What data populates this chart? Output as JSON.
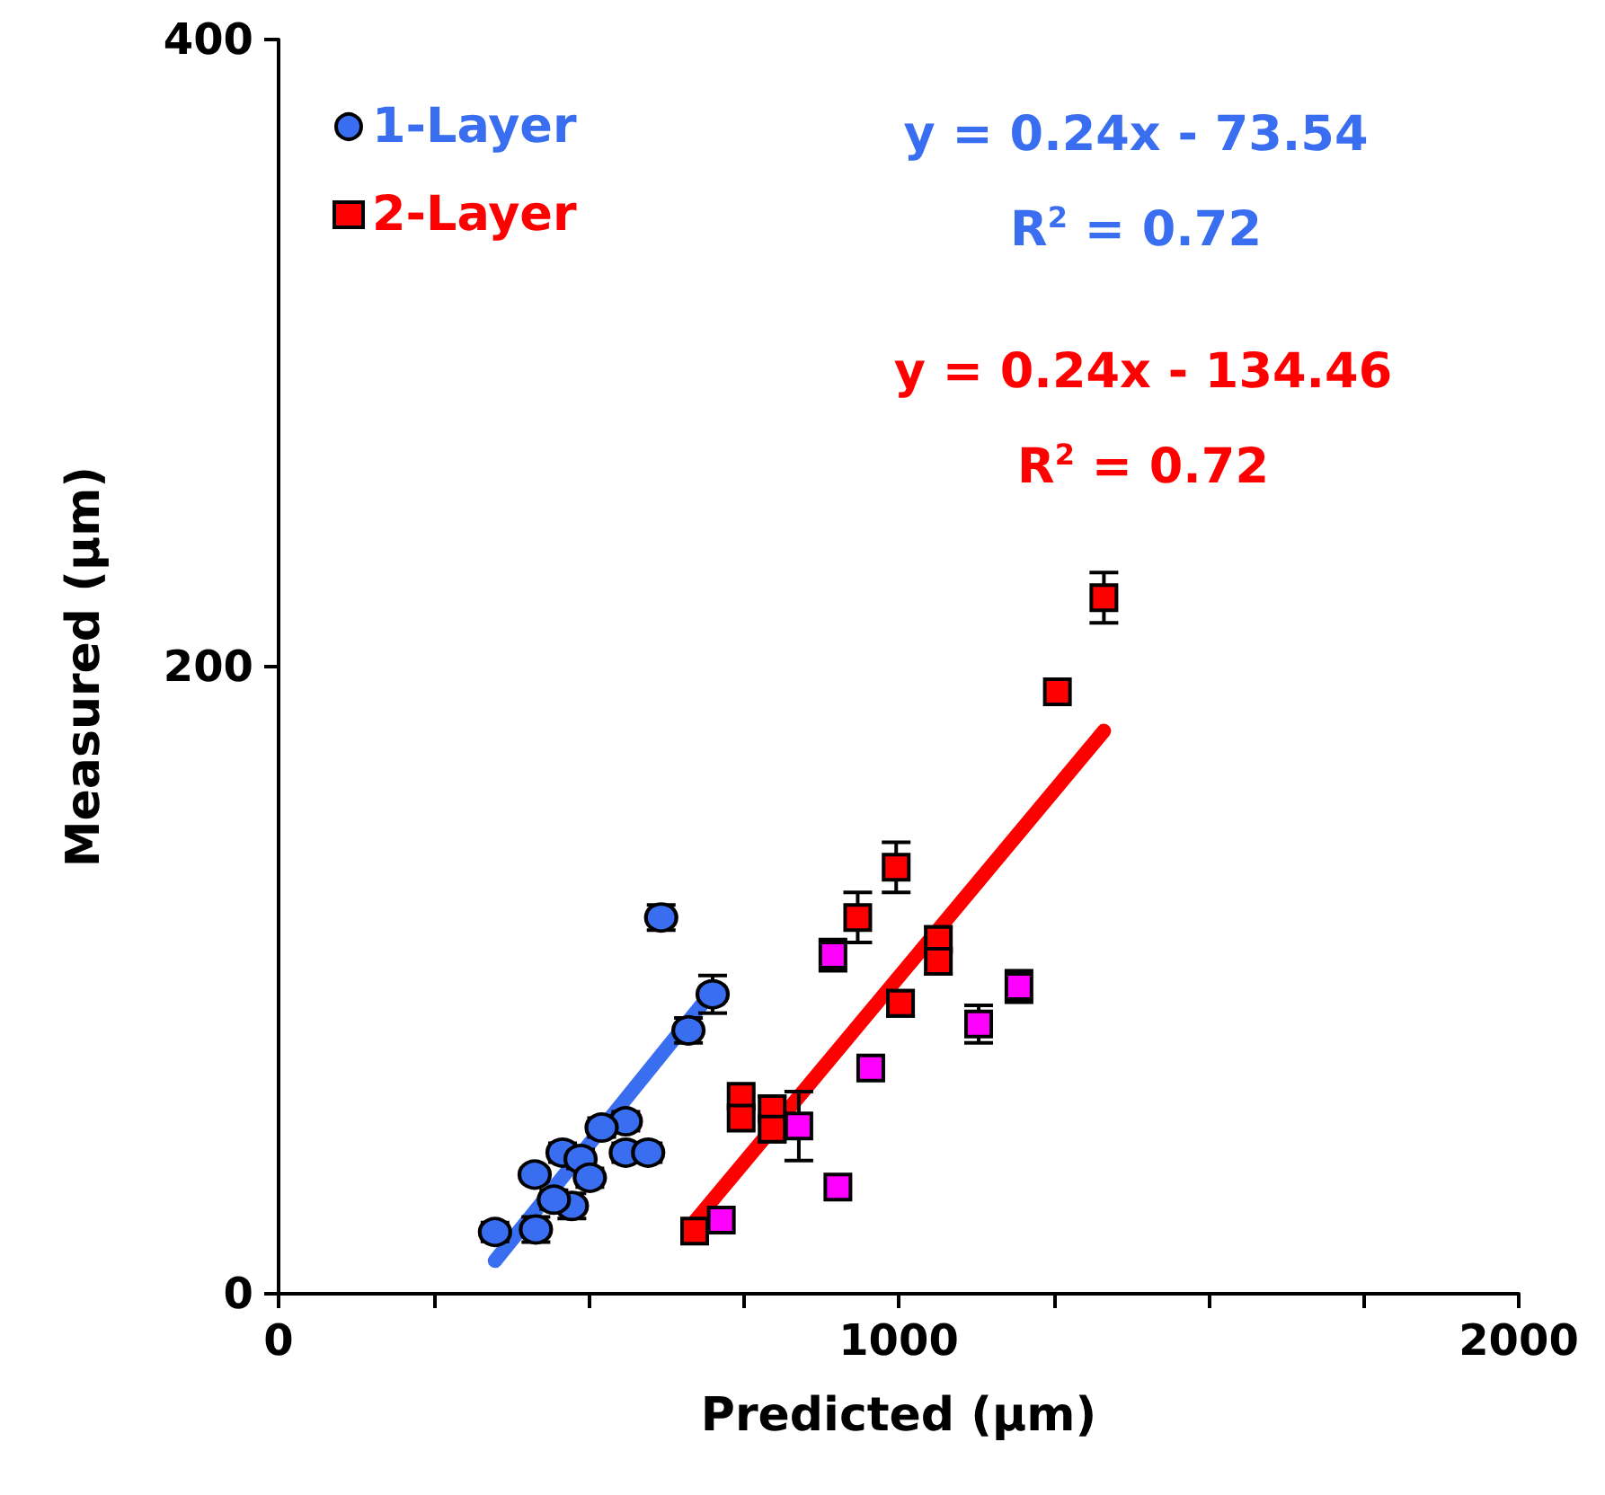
{
  "chart_data": {
    "type": "scatter",
    "xlabel": "Predicted (µm)",
    "ylabel": "Measured (µm)",
    "xlim": [
      0,
      2000
    ],
    "xticks": [
      0,
      {
        "value": 250,
        "label": null
      },
      {
        "value": 500,
        "label": null
      },
      {
        "value": 750,
        "label": null
      },
      1000,
      {
        "value": 1250,
        "label": null
      },
      {
        "value": 1500,
        "label": null
      },
      {
        "value": 1750,
        "label": null
      },
      2000
    ],
    "ylim": [
      0,
      400
    ],
    "yticks": [
      0,
      200,
      400
    ],
    "grid": false,
    "legend": "top left",
    "series": [
      {
        "name": "1-Layer",
        "color": "#3a6ef0",
        "marker": "circle",
        "x": [
          617,
          700,
          661,
          560,
          521,
          560,
          596,
          458,
          487,
          502,
          413,
          473,
          444,
          415,
          349
        ],
        "values": [
          120,
          95.5,
          84,
          55,
          53,
          45,
          45,
          45,
          43,
          37,
          38,
          28,
          30,
          20.5,
          19.7
        ],
        "errors": [
          4,
          6,
          4,
          3,
          3,
          3,
          3,
          3,
          3,
          3,
          null,
          4,
          3,
          4,
          3
        ]
      },
      {
        "name": "2-Layer",
        "color": "#ff0000",
        "marker": "square",
        "x": [
          1331,
          1256,
          996,
          934,
          1064,
          1064,
          1003,
          746,
          746,
          796,
          796,
          671
        ],
        "values": [
          222,
          192,
          136,
          120,
          113,
          106,
          92.6,
          63,
          56,
          59,
          52.5,
          20
        ],
        "errors": [
          8,
          null,
          8,
          8,
          4,
          4,
          4,
          null,
          null,
          4,
          4,
          null
        ]
      },
      {
        "color": "#ff00ff",
        "marker": "square",
        "x": [
          894,
          1194,
          1129,
          955,
          839,
          902,
          714
        ],
        "values": [
          108,
          98,
          86,
          72,
          53.5,
          34,
          23.5
        ],
        "errors": [
          5,
          5,
          6,
          null,
          11,
          null,
          null
        ]
      },
      {
        "type": "line",
        "color": "#3a6ef0",
        "marker": "none",
        "x": [
          349,
          700
        ],
        "values": [
          10.5,
          96.5
        ]
      },
      {
        "type": "line",
        "color": "#ff0000",
        "marker": "none",
        "x": [
          671,
          1331
        ],
        "values": [
          23,
          179.5
        ]
      }
    ],
    "annotations": [
      "y = 0.24x - 73.54",
      "R$^{2}$ = 0.72",
      "y = 0.24x - 134.46",
      "R$^{2}$ = 0.72"
    ]
  }
}
